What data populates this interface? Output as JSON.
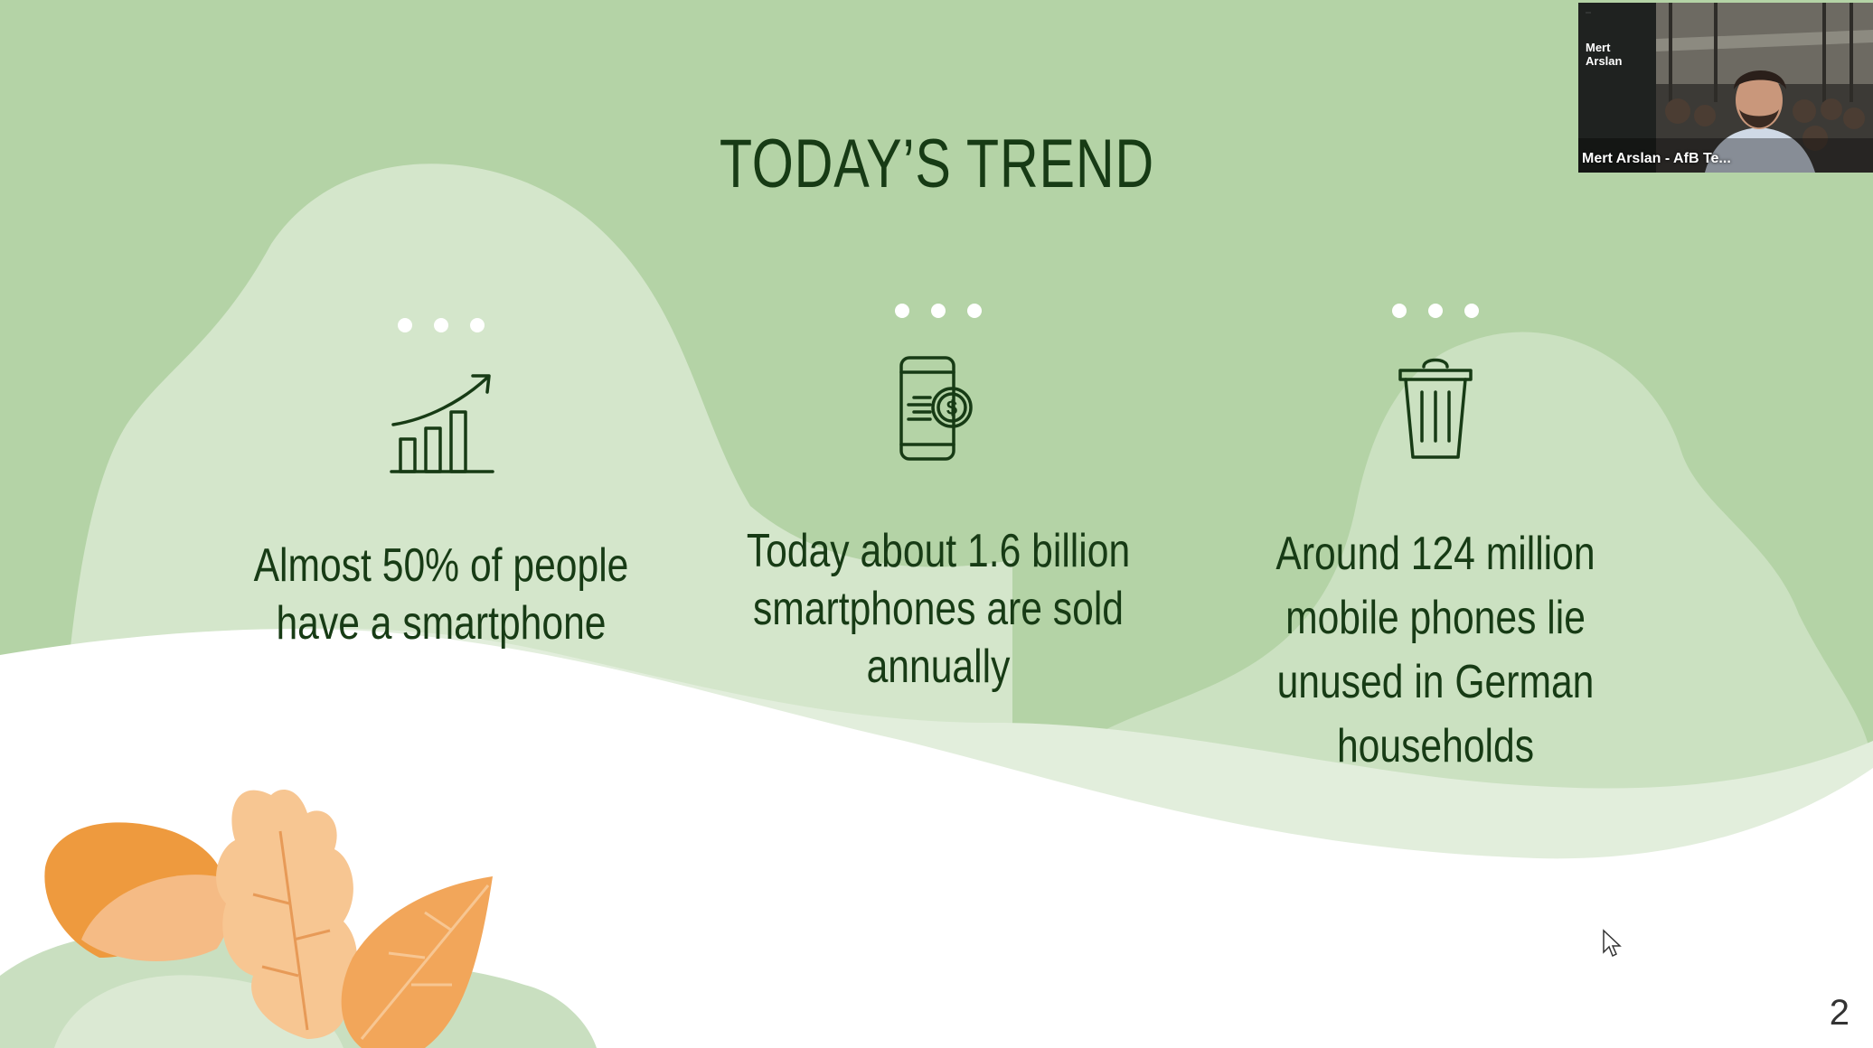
{
  "slide": {
    "title": "TODAY’S TREND",
    "page_number": "2",
    "columns": [
      {
        "icon": "growth-chart-icon",
        "text": "Almost 50% of people have a smartphone"
      },
      {
        "icon": "smartphone-money-icon",
        "text": "Today about 1.6 billion smartphones are sold annually"
      },
      {
        "icon": "trash-bin-icon",
        "text": "Around 124 million mobile phones lie unused in German households"
      }
    ],
    "colors": {
      "background": "#b4d3a6",
      "blob_light": "#d5e6cc",
      "text_dark": "#173b15",
      "leaf_orange": "#ee9a3e",
      "leaf_peach": "#f7c08c"
    }
  },
  "webcam": {
    "speaker_name": "Mert\nArslan",
    "label": "Mert Arslan - AfB Te..."
  }
}
